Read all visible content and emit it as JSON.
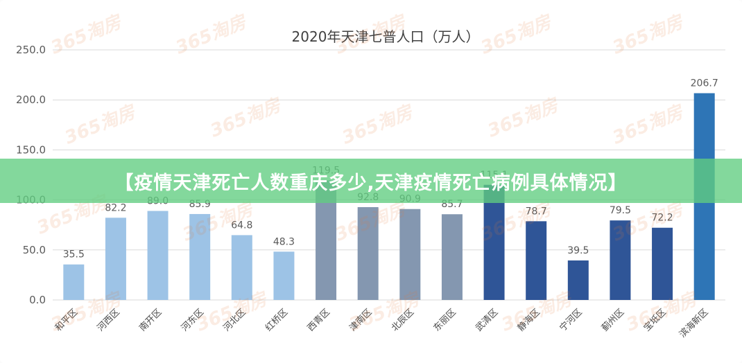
{
  "banner": {
    "text": "【疫情天津死亡人数重庆多少,天津疫情死亡病例具体情况】"
  },
  "watermark": {
    "text": "365淘房"
  },
  "colors": {
    "light_blue": "#9dc3e6",
    "grey_blue": "#8497b0",
    "navy": "#2f5597",
    "bright_blue": "#2e75b6",
    "grid": "#d9d9d9",
    "banner": "#60cd80"
  },
  "chart_data": {
    "type": "bar",
    "title": "2020年天津七普人口（万人）",
    "xlabel": "",
    "ylabel": "",
    "ylim": [
      0,
      250
    ],
    "yticks": [
      "0.0",
      "50.0",
      "100.0",
      "150.0",
      "200.0",
      "250.0"
    ],
    "grid": true,
    "legend": "none",
    "categories": [
      "和平区",
      "河西区",
      "南开区",
      "河东区",
      "河北区",
      "红桥区",
      "西青区",
      "津南区",
      "北辰区",
      "东丽区",
      "武清区",
      "静海区",
      "宁河区",
      "蓟州区",
      "宝坻区",
      "滨海新区"
    ],
    "values": [
      35.5,
      82.2,
      89.0,
      85.9,
      64.8,
      48.3,
      119.5,
      92.8,
      90.9,
      85.7,
      115.1,
      78.7,
      39.5,
      79.5,
      72.2,
      206.7
    ],
    "value_labels": [
      "35.5",
      "82.2",
      "89.0",
      "85.9",
      "64.8",
      "48.3",
      "119.5",
      "92.8",
      "90.9",
      "85.7",
      "115.1",
      "78.7",
      "39.5",
      "79.5",
      "72.2",
      "206.7"
    ],
    "bar_colors": [
      "#9dc3e6",
      "#9dc3e6",
      "#9dc3e6",
      "#9dc3e6",
      "#9dc3e6",
      "#9dc3e6",
      "#8497b0",
      "#8497b0",
      "#8497b0",
      "#8497b0",
      "#2f5597",
      "#2f5597",
      "#2f5597",
      "#2f5597",
      "#2f5597",
      "#2e75b6"
    ]
  }
}
